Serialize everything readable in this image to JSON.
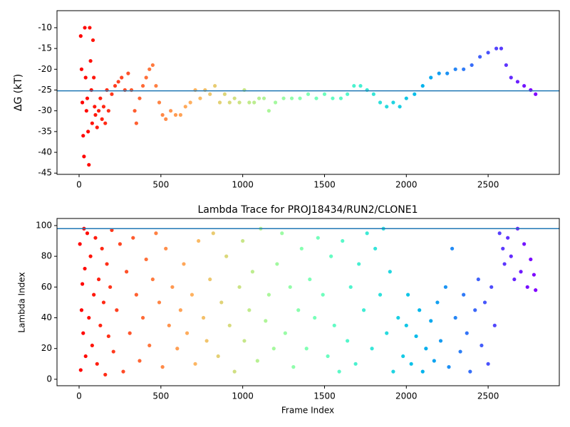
{
  "chart_data": [
    {
      "type": "scatter",
      "ylabel": "ΔG (kT)",
      "colormap": "rainbow_r",
      "hline": -25.2,
      "hline_color": "#1f77b4",
      "xlim": [
        -135,
        2935
      ],
      "xticks": [
        0,
        500,
        1000,
        1500,
        2000,
        2500
      ],
      "ylim": [
        -45.3,
        -5.9
      ],
      "yticks": [
        -45,
        -40,
        -35,
        -30,
        -25,
        -20,
        -15,
        -10
      ],
      "x": [
        10,
        15,
        20,
        25,
        30,
        35,
        40,
        45,
        50,
        55,
        60,
        65,
        70,
        75,
        80,
        85,
        90,
        95,
        100,
        110,
        120,
        130,
        140,
        150,
        160,
        170,
        180,
        200,
        220,
        240,
        260,
        280,
        300,
        320,
        340,
        350,
        370,
        390,
        410,
        430,
        450,
        470,
        490,
        510,
        530,
        560,
        590,
        620,
        650,
        680,
        710,
        740,
        770,
        800,
        830,
        860,
        890,
        920,
        950,
        980,
        1010,
        1040,
        1070,
        1100,
        1130,
        1160,
        1200,
        1250,
        1300,
        1350,
        1400,
        1450,
        1500,
        1550,
        1600,
        1640,
        1680,
        1720,
        1760,
        1800,
        1840,
        1880,
        1920,
        1960,
        2000,
        2050,
        2100,
        2150,
        2200,
        2250,
        2300,
        2350,
        2400,
        2450,
        2500,
        2550,
        2580,
        2610,
        2640,
        2680,
        2720,
        2760,
        2790
      ],
      "y": [
        -12,
        -20,
        -28,
        -36,
        -41,
        -10,
        -22,
        -30,
        -27,
        -35,
        -43,
        -10,
        -18,
        -25,
        -33,
        -13,
        -22,
        -29,
        -31,
        -34,
        -30,
        -27,
        -32,
        -29,
        -33,
        -25,
        -30,
        -26,
        -24,
        -23,
        -22,
        -25,
        -21,
        -25,
        -30,
        -33,
        -27,
        -24,
        -22,
        -20,
        -19,
        -24,
        -28,
        -31,
        -32,
        -30,
        -31,
        -31,
        -29,
        -28,
        -25,
        -27,
        -25,
        -26,
        -24,
        -28,
        -26,
        -28,
        -27,
        -28,
        -25,
        -28,
        -28,
        -27,
        -27,
        -30,
        -28,
        -27,
        -27,
        -27,
        -26,
        -27,
        -26,
        -27,
        -27,
        -26,
        -24,
        -24,
        -25,
        -26,
        -28,
        -29,
        -28,
        -29,
        -27,
        -26,
        -24,
        -22,
        -21,
        -21,
        -20,
        -20,
        -19,
        -17,
        -16,
        -15,
        -15,
        -19,
        -22,
        -23,
        -24,
        -25,
        -26
      ]
    },
    {
      "type": "scatter",
      "title": "Lambda Trace for PROJ18434/RUN2/CLONE1",
      "xlabel": "Frame Index",
      "ylabel": "Lambda Index",
      "colormap": "rainbow_r",
      "hline": 98,
      "hline_color": "#1f77b4",
      "xlim": [
        -135,
        2935
      ],
      "xticks": [
        0,
        500,
        1000,
        1500,
        2000,
        2500
      ],
      "ylim": [
        -4.2,
        104.6
      ],
      "yticks": [
        0,
        20,
        40,
        60,
        80,
        100
      ],
      "x": [
        5,
        10,
        15,
        20,
        25,
        30,
        35,
        40,
        50,
        60,
        70,
        80,
        90,
        100,
        110,
        120,
        130,
        140,
        150,
        160,
        170,
        180,
        190,
        200,
        210,
        230,
        250,
        270,
        290,
        310,
        330,
        350,
        370,
        390,
        410,
        430,
        450,
        470,
        490,
        510,
        530,
        550,
        570,
        600,
        620,
        640,
        660,
        690,
        710,
        730,
        760,
        780,
        800,
        820,
        850,
        870,
        900,
        920,
        950,
        980,
        1000,
        1010,
        1040,
        1060,
        1090,
        1110,
        1140,
        1160,
        1190,
        1210,
        1240,
        1260,
        1290,
        1310,
        1340,
        1360,
        1390,
        1410,
        1440,
        1460,
        1490,
        1520,
        1540,
        1560,
        1590,
        1610,
        1640,
        1660,
        1690,
        1710,
        1740,
        1760,
        1790,
        1810,
        1840,
        1860,
        1880,
        1900,
        1920,
        1950,
        1980,
        2000,
        2010,
        2030,
        2060,
        2080,
        2100,
        2120,
        2150,
        2170,
        2190,
        2210,
        2240,
        2260,
        2280,
        2300,
        2330,
        2350,
        2370,
        2390,
        2420,
        2440,
        2460,
        2480,
        2500,
        2520,
        2540,
        2570,
        2590,
        2600,
        2620,
        2640,
        2660,
        2680,
        2700,
        2720,
        2740,
        2760,
        2780,
        2790
      ],
      "y": [
        88,
        6,
        45,
        62,
        30,
        98,
        72,
        15,
        95,
        40,
        80,
        22,
        55,
        92,
        10,
        65,
        35,
        85,
        50,
        3,
        75,
        28,
        60,
        97,
        18,
        45,
        88,
        5,
        70,
        30,
        92,
        55,
        12,
        40,
        78,
        22,
        65,
        95,
        50,
        8,
        85,
        35,
        60,
        20,
        45,
        75,
        30,
        55,
        10,
        90,
        40,
        25,
        65,
        95,
        15,
        50,
        80,
        35,
        5,
        60,
        90,
        25,
        45,
        70,
        12,
        98,
        38,
        55,
        20,
        75,
        95,
        30,
        60,
        8,
        45,
        85,
        20,
        65,
        40,
        92,
        55,
        15,
        80,
        35,
        5,
        90,
        25,
        60,
        10,
        75,
        45,
        95,
        20,
        85,
        55,
        98,
        30,
        70,
        5,
        40,
        15,
        35,
        55,
        10,
        28,
        45,
        5,
        20,
        38,
        12,
        50,
        25,
        60,
        8,
        85,
        40,
        18,
        55,
        30,
        5,
        45,
        65,
        22,
        50,
        10,
        60,
        35,
        95,
        85,
        75,
        92,
        80,
        65,
        98,
        70,
        88,
        60,
        78,
        68,
        58
      ]
    }
  ]
}
